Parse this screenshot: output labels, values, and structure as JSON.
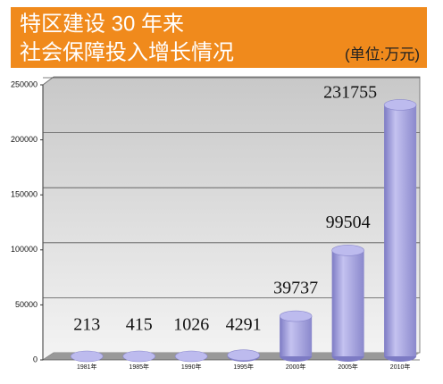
{
  "chart_data": {
    "type": "bar",
    "title": "特区建设 30 年来",
    "subtitle": "社会保障投入增长情况",
    "unit": "(单位:万元)",
    "categories": [
      "1981年",
      "1985年",
      "1990年",
      "1995年",
      "2000年",
      "2005年",
      "2010年"
    ],
    "values": [
      213,
      415,
      1026,
      4291,
      39737,
      99504,
      231755
    ],
    "color": "#9c9ad8",
    "ylim": [
      0,
      250000
    ],
    "yticks": [
      0,
      50000,
      100000,
      150000,
      200000,
      250000
    ],
    "grid": true
  }
}
